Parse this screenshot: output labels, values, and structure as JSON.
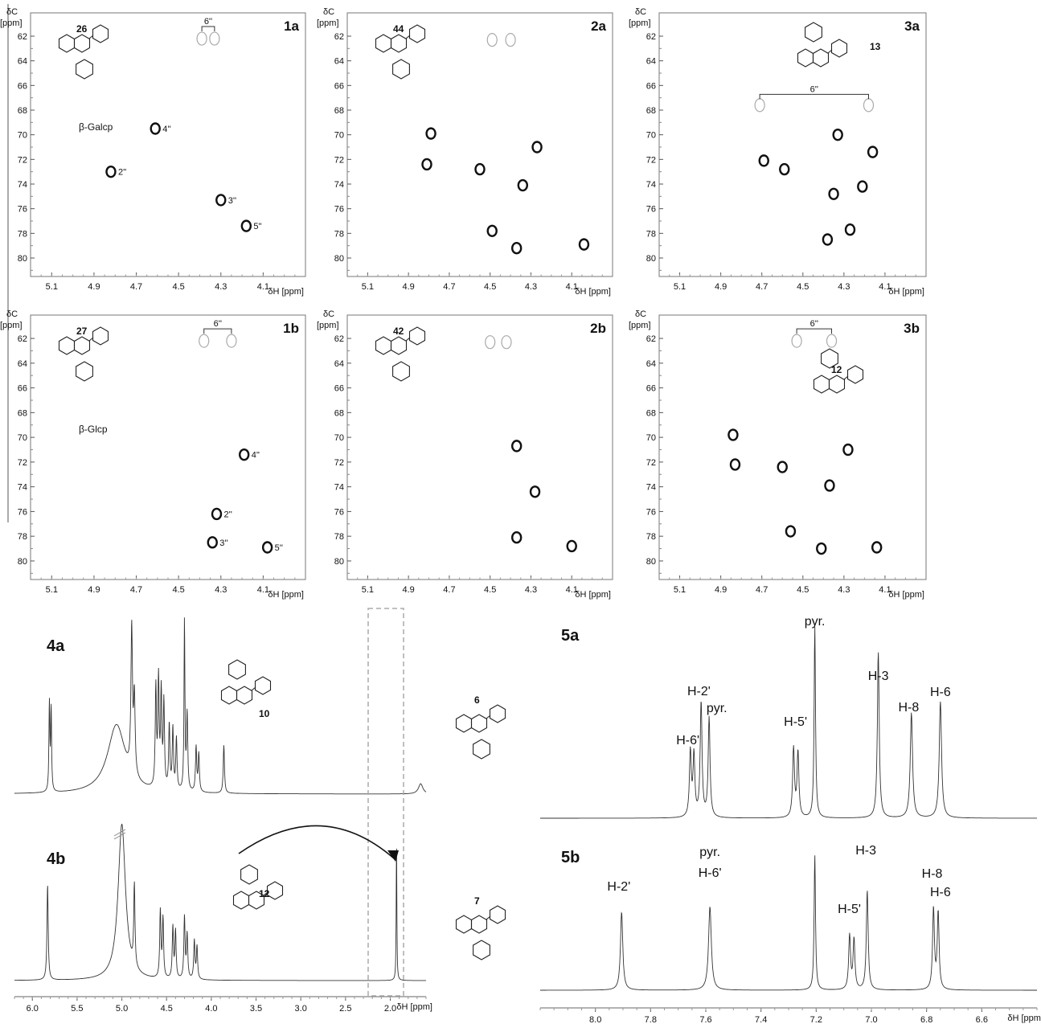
{
  "panels2d": [
    {
      "id": "1a",
      "label": "1a",
      "compound": "26",
      "sugar": "β-Galcp",
      "ylabel_top": "δC",
      "ylabel_unit": "[ppm]",
      "xlabel": "δH [ppm]",
      "xlim": [
        5.2,
        3.9
      ],
      "ylim": [
        60.5,
        81.5
      ],
      "xticks": [
        "5.1",
        "4.9",
        "4.7",
        "4.5",
        "4.3",
        "4.1"
      ],
      "yticks": [
        "62",
        "64",
        "66",
        "68",
        "70",
        "72",
        "74",
        "76",
        "78",
        "80"
      ],
      "bracket": {
        "label": "6''",
        "x1": 4.39,
        "x2": 4.33,
        "y": 62.0
      },
      "peaks": [
        {
          "x": 4.82,
          "y": 73.0,
          "label": "2''"
        },
        {
          "x": 4.61,
          "y": 69.5,
          "label": "4''"
        },
        {
          "x": 4.3,
          "y": 75.3,
          "label": "3''"
        },
        {
          "x": 4.18,
          "y": 77.4,
          "label": "5''"
        }
      ],
      "faint_peaks": [
        {
          "x": 4.39,
          "y": 62.2
        },
        {
          "x": 4.33,
          "y": 62.2
        }
      ]
    },
    {
      "id": "2a",
      "label": "2a",
      "compound": "44",
      "sugar": "",
      "ylabel_top": "δC",
      "ylabel_unit": "[ppm]",
      "xlabel": "δH [ppm]",
      "xlim": [
        5.2,
        3.9
      ],
      "ylim": [
        60.5,
        81.5
      ],
      "xticks": [
        "5.1",
        "4.9",
        "4.7",
        "4.5",
        "4.3",
        "4.1"
      ],
      "yticks": [
        "62",
        "64",
        "66",
        "68",
        "70",
        "72",
        "74",
        "76",
        "78",
        "80"
      ],
      "bracket": null,
      "peaks": [
        {
          "x": 4.79,
          "y": 69.9,
          "label": ""
        },
        {
          "x": 4.81,
          "y": 72.4,
          "label": ""
        },
        {
          "x": 4.55,
          "y": 72.8,
          "label": ""
        },
        {
          "x": 4.27,
          "y": 71.0,
          "label": ""
        },
        {
          "x": 4.34,
          "y": 74.1,
          "label": ""
        },
        {
          "x": 4.49,
          "y": 77.8,
          "label": ""
        },
        {
          "x": 4.37,
          "y": 79.2,
          "label": ""
        },
        {
          "x": 4.04,
          "y": 78.9,
          "label": ""
        }
      ],
      "faint_peaks": [
        {
          "x": 4.49,
          "y": 62.3
        },
        {
          "x": 4.4,
          "y": 62.3
        }
      ]
    },
    {
      "id": "3a",
      "label": "3a",
      "compound": "13",
      "sugar": "",
      "ylabel_top": "δC",
      "ylabel_unit": "[ppm]",
      "xlabel": "δH [ppm]",
      "xlim": [
        5.2,
        3.9
      ],
      "ylim": [
        60.5,
        81.5
      ],
      "xticks": [
        "5.1",
        "4.9",
        "4.7",
        "4.5",
        "4.3",
        "4.1"
      ],
      "yticks": [
        "62",
        "64",
        "66",
        "68",
        "70",
        "72",
        "74",
        "76",
        "78",
        "80"
      ],
      "bracket": {
        "label": "6''",
        "x1": 4.71,
        "x2": 4.18,
        "y": 67.5
      },
      "peaks": [
        {
          "x": 4.33,
          "y": 70.0,
          "label": ""
        },
        {
          "x": 4.16,
          "y": 71.4,
          "label": ""
        },
        {
          "x": 4.69,
          "y": 72.1,
          "label": ""
        },
        {
          "x": 4.59,
          "y": 72.8,
          "label": ""
        },
        {
          "x": 4.21,
          "y": 74.2,
          "label": ""
        },
        {
          "x": 4.35,
          "y": 74.8,
          "label": ""
        },
        {
          "x": 4.27,
          "y": 77.7,
          "label": ""
        },
        {
          "x": 4.38,
          "y": 78.5,
          "label": ""
        }
      ],
      "faint_peaks": [
        {
          "x": 4.71,
          "y": 67.6
        },
        {
          "x": 4.18,
          "y": 67.6
        }
      ]
    },
    {
      "id": "1b",
      "label": "1b",
      "compound": "27",
      "sugar": "β-Glcp",
      "ylabel_top": "δC",
      "ylabel_unit": "[ppm]",
      "xlabel": "δH [ppm]",
      "xlim": [
        5.2,
        3.9
      ],
      "ylim": [
        60.5,
        81.5
      ],
      "xticks": [
        "5.1",
        "4.9",
        "4.7",
        "4.5",
        "4.3",
        "4.1"
      ],
      "yticks": [
        "62",
        "64",
        "66",
        "68",
        "70",
        "72",
        "74",
        "76",
        "78",
        "80"
      ],
      "bracket": {
        "label": "6''",
        "x1": 4.38,
        "x2": 4.25,
        "y": 62.0
      },
      "peaks": [
        {
          "x": 4.19,
          "y": 71.4,
          "label": "4''"
        },
        {
          "x": 4.32,
          "y": 76.2,
          "label": "2''"
        },
        {
          "x": 4.34,
          "y": 78.5,
          "label": "3''"
        },
        {
          "x": 4.08,
          "y": 78.9,
          "label": "5''"
        }
      ],
      "faint_peaks": [
        {
          "x": 4.38,
          "y": 62.2
        },
        {
          "x": 4.25,
          "y": 62.2
        }
      ]
    },
    {
      "id": "2b",
      "label": "2b",
      "compound": "42",
      "sugar": "",
      "ylabel_top": "δC",
      "ylabel_unit": "[ppm]",
      "xlabel": "δH [ppm]",
      "xlim": [
        5.2,
        3.9
      ],
      "ylim": [
        60.5,
        81.5
      ],
      "xticks": [
        "5.1",
        "4.9",
        "4.7",
        "4.5",
        "4.3",
        "4.1"
      ],
      "yticks": [
        "62",
        "64",
        "66",
        "68",
        "70",
        "72",
        "74",
        "76",
        "78",
        "80"
      ],
      "bracket": null,
      "peaks": [
        {
          "x": 4.37,
          "y": 70.7,
          "label": ""
        },
        {
          "x": 4.28,
          "y": 74.4,
          "label": ""
        },
        {
          "x": 4.37,
          "y": 78.1,
          "label": ""
        },
        {
          "x": 4.1,
          "y": 78.8,
          "label": ""
        }
      ],
      "faint_peaks": [
        {
          "x": 4.5,
          "y": 62.3
        },
        {
          "x": 4.42,
          "y": 62.3
        }
      ]
    },
    {
      "id": "3b",
      "label": "3b",
      "compound": "12",
      "sugar": "",
      "ylabel_top": "δC",
      "ylabel_unit": "[ppm]",
      "xlabel": "δH [ppm]",
      "xlim": [
        5.2,
        3.9
      ],
      "ylim": [
        60.5,
        81.5
      ],
      "xticks": [
        "5.1",
        "4.9",
        "4.7",
        "4.5",
        "4.3",
        "4.1"
      ],
      "yticks": [
        "62",
        "64",
        "66",
        "68",
        "70",
        "72",
        "74",
        "76",
        "78",
        "80"
      ],
      "bracket": {
        "label": "6''",
        "x1": 4.53,
        "x2": 4.36,
        "y": 62.0
      },
      "peaks": [
        {
          "x": 4.84,
          "y": 69.8,
          "label": ""
        },
        {
          "x": 4.83,
          "y": 72.2,
          "label": ""
        },
        {
          "x": 4.28,
          "y": 71.0,
          "label": ""
        },
        {
          "x": 4.6,
          "y": 72.4,
          "label": ""
        },
        {
          "x": 4.37,
          "y": 73.9,
          "label": ""
        },
        {
          "x": 4.56,
          "y": 77.6,
          "label": ""
        },
        {
          "x": 4.41,
          "y": 79.0,
          "label": ""
        },
        {
          "x": 4.14,
          "y": 78.9,
          "label": ""
        }
      ],
      "faint_peaks": [
        {
          "x": 4.53,
          "y": 62.2
        },
        {
          "x": 4.36,
          "y": 62.2
        }
      ]
    }
  ],
  "spec4": {
    "xlabel": "δH [ppm]",
    "xlim": [
      6.2,
      1.6
    ],
    "xticks": [
      "6.0",
      "5.5",
      "5.0",
      "4.5",
      "4.0",
      "3.5",
      "3.0",
      "2.5",
      "2.0"
    ],
    "traces": [
      {
        "label": "4a",
        "compound": "10",
        "peaks": [
          {
            "x": 5.81,
            "h": 0.52,
            "w": 0.006
          },
          {
            "x": 5.79,
            "h": 0.48,
            "w": 0.006
          },
          {
            "x": 5.06,
            "h": 0.4,
            "w": 0.12
          },
          {
            "x": 4.89,
            "h": 0.84,
            "w": 0.01
          },
          {
            "x": 4.86,
            "h": 0.45,
            "w": 0.01
          },
          {
            "x": 4.62,
            "h": 0.58,
            "w": 0.008
          },
          {
            "x": 4.59,
            "h": 0.62,
            "w": 0.008
          },
          {
            "x": 4.56,
            "h": 0.55,
            "w": 0.008
          },
          {
            "x": 4.53,
            "h": 0.5,
            "w": 0.008
          },
          {
            "x": 4.47,
            "h": 0.38,
            "w": 0.008
          },
          {
            "x": 4.43,
            "h": 0.36,
            "w": 0.008
          },
          {
            "x": 4.39,
            "h": 0.3,
            "w": 0.008
          },
          {
            "x": 4.3,
            "h": 1.0,
            "w": 0.006
          },
          {
            "x": 4.27,
            "h": 0.45,
            "w": 0.008
          },
          {
            "x": 4.17,
            "h": 0.26,
            "w": 0.008
          },
          {
            "x": 4.14,
            "h": 0.22,
            "w": 0.008
          },
          {
            "x": 3.86,
            "h": 0.28,
            "w": 0.008
          },
          {
            "x": 1.66,
            "h": 0.06,
            "w": 0.03
          }
        ]
      },
      {
        "label": "4b",
        "compound": "12",
        "peaks": [
          {
            "x": 5.83,
            "h": 0.65,
            "w": 0.008
          },
          {
            "x": 5.0,
            "h": 1.05,
            "w": 0.05
          },
          {
            "x": 4.86,
            "h": 0.55,
            "w": 0.008
          },
          {
            "x": 4.57,
            "h": 0.45,
            "w": 0.008
          },
          {
            "x": 4.54,
            "h": 0.4,
            "w": 0.008
          },
          {
            "x": 4.43,
            "h": 0.35,
            "w": 0.008
          },
          {
            "x": 4.4,
            "h": 0.32,
            "w": 0.008
          },
          {
            "x": 4.3,
            "h": 0.42,
            "w": 0.008
          },
          {
            "x": 4.27,
            "h": 0.3,
            "w": 0.008
          },
          {
            "x": 4.19,
            "h": 0.26,
            "w": 0.008
          },
          {
            "x": 4.16,
            "h": 0.22,
            "w": 0.008
          },
          {
            "x": 1.93,
            "h": 1.0,
            "w": 0.004
          }
        ]
      }
    ]
  },
  "spec5": {
    "xlabel": "δH [ppm]",
    "xlim": [
      8.2,
      6.4
    ],
    "xticks": [
      "8.0",
      "7.8",
      "7.6",
      "7.4",
      "7.2",
      "7.0",
      "6.8",
      "6.6"
    ],
    "traces": [
      {
        "label": "5a",
        "compound": "6",
        "peaks": [
          {
            "x": 7.656,
            "h": 0.34,
            "w": 0.004
          },
          {
            "x": 7.643,
            "h": 0.32,
            "w": 0.004
          },
          {
            "x": 7.617,
            "h": 0.6,
            "w": 0.004
          },
          {
            "x": 7.588,
            "h": 0.52,
            "w": 0.004
          },
          {
            "x": 7.282,
            "h": 0.36,
            "w": 0.004
          },
          {
            "x": 7.266,
            "h": 0.34,
            "w": 0.004
          },
          {
            "x": 7.205,
            "h": 1.0,
            "w": 0.003
          },
          {
            "x": 6.975,
            "h": 0.87,
            "w": 0.004
          },
          {
            "x": 6.855,
            "h": 0.55,
            "w": 0.005
          },
          {
            "x": 6.75,
            "h": 0.61,
            "w": 0.005
          }
        ],
        "labels": [
          {
            "text": "H-6'",
            "x": 7.665,
            "y": 926
          },
          {
            "text": "H-2'",
            "x": 7.625,
            "y": 865
          },
          {
            "text": "pyr.",
            "x": 7.56,
            "y": 886
          },
          {
            "text": "H-5'",
            "x": 7.275,
            "y": 903
          },
          {
            "text": "pyr.",
            "x": 7.205,
            "y": 778
          },
          {
            "text": "H-3",
            "x": 6.975,
            "y": 846
          },
          {
            "text": "H-8",
            "x": 6.865,
            "y": 885
          },
          {
            "text": "H-6",
            "x": 6.75,
            "y": 866
          }
        ]
      },
      {
        "label": "5b",
        "compound": "7",
        "peaks": [
          {
            "x": 7.905,
            "h": 0.58,
            "w": 0.005
          },
          {
            "x": 7.585,
            "h": 0.62,
            "w": 0.006
          },
          {
            "x": 7.205,
            "h": 1.0,
            "w": 0.003
          },
          {
            "x": 7.079,
            "h": 0.4,
            "w": 0.004
          },
          {
            "x": 7.063,
            "h": 0.37,
            "w": 0.004
          },
          {
            "x": 7.015,
            "h": 0.74,
            "w": 0.004
          },
          {
            "x": 6.775,
            "h": 0.6,
            "w": 0.004
          },
          {
            "x": 6.758,
            "h": 0.57,
            "w": 0.004
          }
        ],
        "labels": [
          {
            "text": "H-2'",
            "x": 7.915,
            "y": 1108
          },
          {
            "text": "pyr.",
            "x": 7.585,
            "y": 1065
          },
          {
            "text": "H-6'",
            "x": 7.585,
            "y": 1091
          },
          {
            "text": "H-3",
            "x": 7.02,
            "y": 1063
          },
          {
            "text": "H-5'",
            "x": 7.08,
            "y": 1136
          },
          {
            "text": "H-8",
            "x": 6.78,
            "y": 1092
          },
          {
            "text": "H-6",
            "x": 6.75,
            "y": 1115
          }
        ]
      }
    ]
  }
}
